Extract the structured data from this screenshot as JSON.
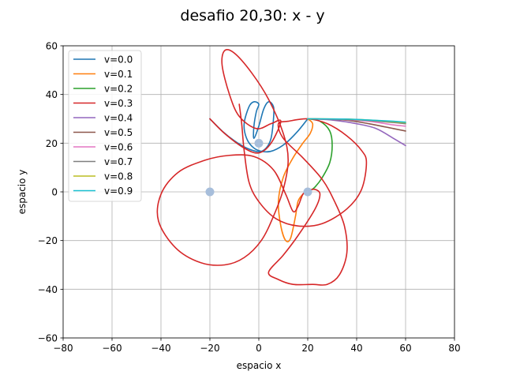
{
  "chart_data": {
    "type": "line",
    "title": "desafio 20,30: x - y",
    "xlabel": "espacio x",
    "ylabel": "espacio y",
    "xlim": [
      -80,
      80
    ],
    "ylim": [
      -60,
      60
    ],
    "xticks": [
      -80,
      -60,
      -40,
      -20,
      0,
      20,
      40,
      60,
      80
    ],
    "yticks": [
      -60,
      -40,
      -20,
      0,
      20,
      40,
      60
    ],
    "xtick_labels": [
      "−80",
      "−60",
      "−40",
      "−20",
      "0",
      "20",
      "40",
      "60",
      "80"
    ],
    "ytick_labels": [
      "−60",
      "−40",
      "−20",
      "0",
      "20",
      "40",
      "60"
    ],
    "grid": true,
    "legend_position": "top-left",
    "attractors": {
      "color": "#a7bedb",
      "points": [
        [
          -20,
          0
        ],
        [
          20,
          0
        ],
        [
          0,
          20
        ]
      ]
    },
    "series": [
      {
        "name": "v=0.0",
        "color": "#1f77b4",
        "points": [
          [
            -20,
            30
          ],
          [
            -15,
            25
          ],
          [
            -10,
            21
          ],
          [
            -5,
            18
          ],
          [
            0,
            16.5
          ],
          [
            3,
            18
          ],
          [
            5,
            22
          ],
          [
            6,
            30
          ],
          [
            6,
            35
          ],
          [
            4,
            37
          ],
          [
            2,
            34
          ],
          [
            0,
            27
          ],
          [
            -2,
            22
          ],
          [
            -2,
            27
          ],
          [
            -1,
            33
          ],
          [
            0,
            36
          ],
          [
            -2,
            37
          ],
          [
            -4,
            35
          ],
          [
            -6,
            28
          ],
          [
            -5,
            22
          ],
          [
            -2,
            18
          ],
          [
            2,
            16.5
          ],
          [
            6,
            17
          ],
          [
            11,
            20
          ],
          [
            16,
            25
          ],
          [
            20,
            30
          ]
        ]
      },
      {
        "name": "v=0.1",
        "color": "#ff7f0e",
        "points": [
          [
            20,
            30
          ],
          [
            22,
            28
          ],
          [
            21,
            24
          ],
          [
            18,
            20
          ],
          [
            14,
            14
          ],
          [
            10,
            6
          ],
          [
            8,
            -4
          ],
          [
            9,
            -14
          ],
          [
            11,
            -20
          ],
          [
            13,
            -19
          ],
          [
            15,
            -10
          ],
          [
            16,
            -4
          ],
          [
            18,
            -1
          ],
          [
            20,
            0
          ]
        ]
      },
      {
        "name": "v=0.2",
        "color": "#2ca02c",
        "points": [
          [
            20,
            30
          ],
          [
            25,
            29
          ],
          [
            29,
            25
          ],
          [
            30,
            19
          ],
          [
            29,
            12
          ],
          [
            26,
            6
          ],
          [
            23,
            2
          ],
          [
            21,
            0.5
          ],
          [
            20,
            0
          ]
        ]
      },
      {
        "name": "v=0.3",
        "color": "#d62728",
        "points": [
          [
            -20,
            30
          ],
          [
            -14,
            24
          ],
          [
            -6,
            18
          ],
          [
            0,
            16
          ],
          [
            5,
            20
          ],
          [
            9,
            29
          ],
          [
            5,
            28
          ],
          [
            -1,
            26
          ],
          [
            -8,
            31
          ],
          [
            -12,
            40
          ],
          [
            -15,
            52
          ],
          [
            -14,
            58
          ],
          [
            -10,
            57
          ],
          [
            -3,
            49
          ],
          [
            4,
            38
          ],
          [
            10,
            24
          ],
          [
            12,
            13
          ],
          [
            10,
            1
          ],
          [
            6,
            -10
          ],
          [
            1,
            -20
          ],
          [
            -6,
            -27
          ],
          [
            -14,
            -30
          ],
          [
            -24,
            -29
          ],
          [
            -34,
            -23
          ],
          [
            -41,
            -12
          ],
          [
            -40,
            -1
          ],
          [
            -33,
            8
          ],
          [
            -22,
            13
          ],
          [
            -12,
            15
          ],
          [
            -2,
            14.5
          ],
          [
            6,
            9
          ],
          [
            11,
            -1
          ],
          [
            14,
            -8
          ],
          [
            16,
            -6
          ],
          [
            18,
            -1
          ],
          [
            20,
            0.5
          ],
          [
            23,
            1
          ],
          [
            25,
            -1
          ],
          [
            23,
            -7
          ],
          [
            16,
            -18
          ],
          [
            10,
            -26
          ],
          [
            4,
            -33
          ],
          [
            8,
            -36
          ],
          [
            14,
            -38
          ],
          [
            22,
            -38
          ],
          [
            28,
            -38
          ],
          [
            33,
            -34
          ],
          [
            36,
            -25
          ],
          [
            35,
            -14
          ],
          [
            31,
            -4
          ],
          [
            26,
            5
          ],
          [
            18,
            14
          ],
          [
            10,
            22
          ],
          [
            8,
            28
          ],
          [
            12,
            29
          ],
          [
            20,
            30
          ],
          [
            28,
            28
          ],
          [
            36,
            23
          ],
          [
            42,
            17
          ],
          [
            44,
            12
          ],
          [
            42,
            1
          ],
          [
            36,
            -7
          ],
          [
            26,
            -13
          ],
          [
            16,
            -14
          ],
          [
            7,
            -11
          ],
          [
            0,
            -4
          ],
          [
            -4,
            4
          ],
          [
            -6,
            17
          ],
          [
            -7,
            28
          ],
          [
            -8,
            36
          ]
        ]
      },
      {
        "name": "v=0.4",
        "color": "#9467bd",
        "points": [
          [
            20,
            30
          ],
          [
            30,
            29.5
          ],
          [
            40,
            28
          ],
          [
            48,
            26
          ],
          [
            55,
            22
          ],
          [
            60,
            19
          ]
        ]
      },
      {
        "name": "v=0.5",
        "color": "#8c564b",
        "points": [
          [
            20,
            30
          ],
          [
            35,
            29.5
          ],
          [
            45,
            28
          ],
          [
            55,
            26
          ],
          [
            60,
            25
          ]
        ]
      },
      {
        "name": "v=0.6",
        "color": "#e377c2",
        "points": [
          [
            20,
            30
          ],
          [
            35,
            29.7
          ],
          [
            45,
            29
          ],
          [
            55,
            27.5
          ],
          [
            60,
            27
          ]
        ]
      },
      {
        "name": "v=0.7",
        "color": "#7f7f7f",
        "points": [
          [
            20,
            30
          ],
          [
            35,
            29.8
          ],
          [
            45,
            29.3
          ],
          [
            55,
            28.5
          ],
          [
            60,
            28
          ]
        ]
      },
      {
        "name": "v=0.8",
        "color": "#bcbd22",
        "points": [
          [
            20,
            30
          ],
          [
            35,
            29.9
          ],
          [
            45,
            29.5
          ],
          [
            55,
            28.8
          ],
          [
            60,
            28.4
          ]
        ]
      },
      {
        "name": "v=0.9",
        "color": "#17becf",
        "points": [
          [
            20,
            30
          ],
          [
            35,
            29.9
          ],
          [
            45,
            29.5
          ],
          [
            55,
            29
          ],
          [
            60,
            28.6
          ]
        ]
      }
    ]
  }
}
